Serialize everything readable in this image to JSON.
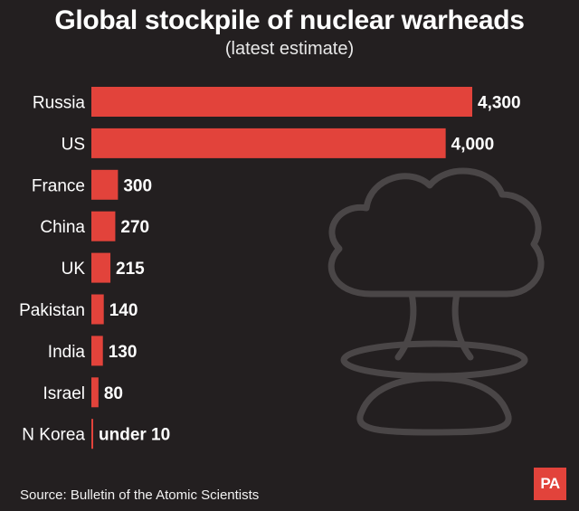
{
  "header": {
    "title": "Global stockpile of nuclear warheads",
    "subtitle": "(latest estimate)"
  },
  "footer": {
    "source": "Source: Bulletin of the Atomic Scientists",
    "logo_text": "PA"
  },
  "colors": {
    "background": "#231f20",
    "bar": "#e2433b",
    "text": "#ffffff",
    "mushroom_cloud": "#4a4647"
  },
  "decoration": {
    "icon": "mushroom-cloud-icon"
  },
  "chart_data": {
    "type": "bar",
    "orientation": "horizontal",
    "title": "Global stockpile of nuclear warheads",
    "subtitle": "(latest estimate)",
    "categories": [
      "Russia",
      "US",
      "France",
      "China",
      "UK",
      "Pakistan",
      "India",
      "Israel",
      "N Korea"
    ],
    "values": [
      4300,
      4000,
      300,
      270,
      215,
      140,
      130,
      80,
      10
    ],
    "value_labels": [
      "4,300",
      "4,000",
      "300",
      "270",
      "215",
      "140",
      "130",
      "80",
      "under 10"
    ],
    "xlabel": "",
    "ylabel": "",
    "grid": false,
    "legend": "none"
  }
}
